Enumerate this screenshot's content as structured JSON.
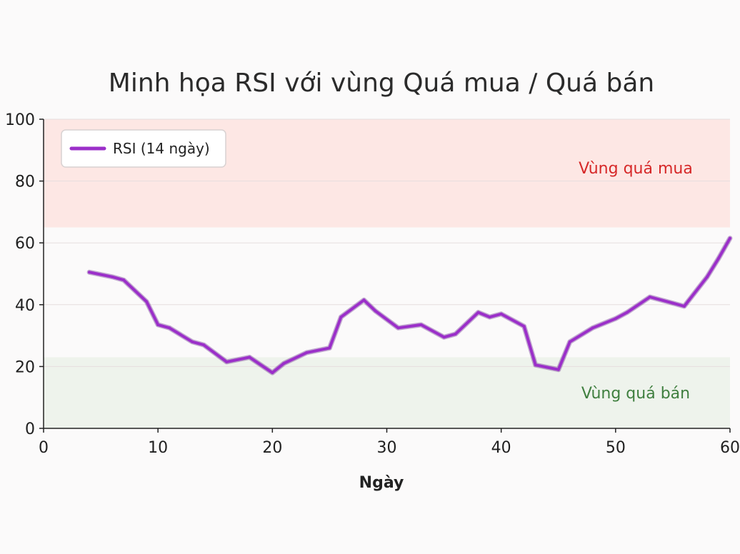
{
  "chart_data": {
    "type": "line",
    "title": "Minh họa RSI với vùng Quá mua / Quá bán",
    "xlabel": "Ngày",
    "ylabel": "",
    "xlim": [
      0,
      60
    ],
    "ylim": [
      0,
      100
    ],
    "x_ticks": [
      0,
      10,
      20,
      30,
      40,
      50,
      60
    ],
    "y_ticks": [
      0,
      20,
      40,
      60,
      80,
      100
    ],
    "grid": "horizontal",
    "legend_position": "top-left",
    "series": [
      {
        "name": "RSI (14 ngày)",
        "color": "#9b2fc9",
        "x": [
          4,
          6,
          7,
          9,
          10,
          11,
          13,
          14,
          16,
          18,
          20,
          21,
          23,
          25,
          26,
          28,
          29,
          31,
          33,
          35,
          36,
          38,
          39,
          40,
          42,
          43,
          45,
          46,
          48,
          50,
          51,
          53,
          55,
          56,
          58,
          59,
          60
        ],
        "y": [
          50.5,
          49,
          48,
          41,
          33.5,
          32.5,
          28,
          27,
          21.5,
          23,
          18,
          21,
          24.5,
          26,
          36,
          41.5,
          38,
          32.5,
          33.5,
          29.5,
          30.5,
          37.5,
          36,
          37,
          33,
          20.5,
          19,
          28,
          32.5,
          35.5,
          37.5,
          42.5,
          40.5,
          39.5,
          49,
          55,
          61.5
        ]
      }
    ],
    "zones": [
      {
        "label": "Vùng quá mua",
        "from": 65,
        "to": 100,
        "color": "#fde7e4",
        "label_color": "#d62828"
      },
      {
        "label": "Vùng quá bán",
        "from": 0,
        "to": 23,
        "color": "#eef3ec",
        "label_color": "#3f7f3f"
      }
    ]
  }
}
